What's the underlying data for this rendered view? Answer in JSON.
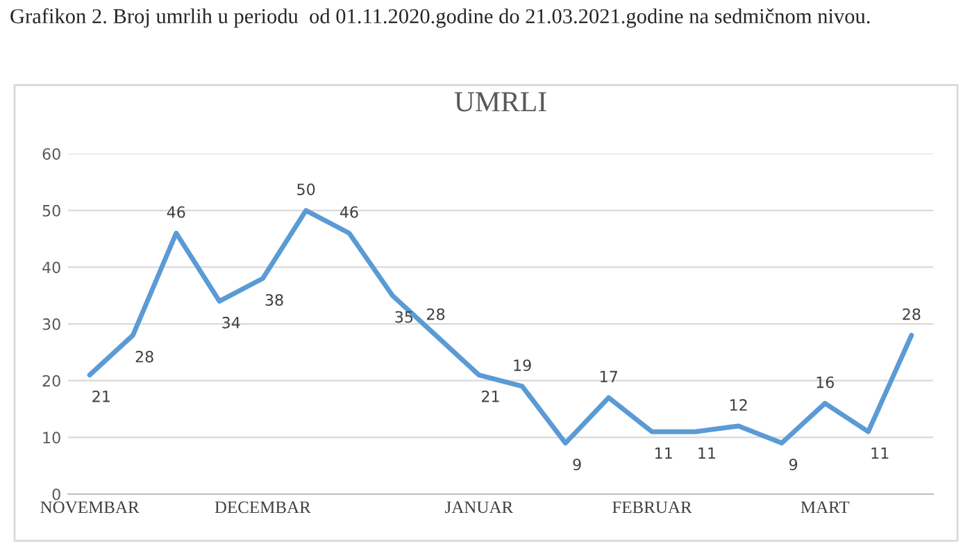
{
  "chart_data": {
    "type": "line",
    "title": "UMRLI",
    "annotations": [
      "Grafikon 2. Broj umrlih u periodu  od 01.11.2020.godine do 21.03.2021.godine na sedmičnom nivou."
    ],
    "categories": [
      "NOVEMBAR",
      null,
      null,
      null,
      "DECEMBAR",
      null,
      null,
      null,
      null,
      "JANUAR",
      null,
      null,
      null,
      "FEBRUAR",
      null,
      null,
      null,
      "MART",
      null,
      null
    ],
    "series": [
      {
        "color": "#5b9bd5",
        "values": [
          21,
          28,
          46,
          34,
          38,
          50,
          46,
          35,
          28,
          21,
          19,
          9,
          17,
          11,
          11,
          12,
          9,
          16,
          11,
          28
        ]
      }
    ],
    "ylim": [
      0,
      60
    ],
    "yticks": [
      0,
      10,
      20,
      30,
      40,
      50,
      60
    ],
    "grid": "y",
    "data_labels": true,
    "legend": false,
    "marker": "none",
    "line_style": "solid"
  }
}
